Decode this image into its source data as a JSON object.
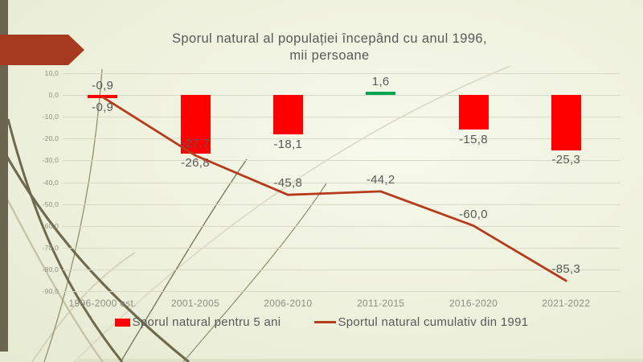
{
  "slide": {
    "title_line1": "Sporul natural al populației începând cu anul 1996,",
    "title_line2": "mii persoane"
  },
  "colors": {
    "bar_negative": "#ff0000",
    "bar_positive": "#00a651",
    "line": "#b43c1d",
    "accent_arrow": "#a63a1e",
    "left_band": "#6b6550",
    "grid": "#d9d8c4",
    "label_text": "#595959",
    "axis_text": "#8e8e83"
  },
  "chart_data": {
    "type": "combo",
    "title": "Sporul natural al populației începând cu anul 1996, mii persoane",
    "xlabel": "",
    "ylabel": "",
    "categories": [
      "1996-2000 est.",
      "2001-2005",
      "2006-2010",
      "2011-2015",
      "2016-2020",
      "2021-2022"
    ],
    "series": [
      {
        "name": "Sporul natural pentru 5 ani",
        "type": "bar",
        "values": [
          -0.9,
          -26.8,
          -18.1,
          1.6,
          -15.8,
          -25.3
        ],
        "labels": [
          "-0,9",
          "-26,8",
          "-18,1",
          "1,6",
          "-15,8",
          "-25,3"
        ],
        "colors": [
          "#ff0000",
          "#ff0000",
          "#ff0000",
          "#00a651",
          "#ff0000",
          "#ff0000"
        ]
      },
      {
        "name": "Sportul natural cumulativ din 1991",
        "type": "line",
        "values": [
          -0.9,
          -27.7,
          -45.8,
          -44.2,
          -60.0,
          -85.3
        ],
        "labels": [
          "-0,9",
          "-27,7",
          "-45,8",
          "-44,2",
          "-60,0",
          "-85,3"
        ]
      }
    ],
    "ylim": [
      -90,
      10
    ],
    "ytick_step": 10,
    "ytick_labels": [
      "10,0",
      "0,0",
      "-10,0",
      "-20,0",
      "-30,0",
      "-40,0",
      "-50,0",
      "-60,0",
      "-70,0",
      "-80,0",
      "-90,0"
    ],
    "grid": true,
    "legend_position": "bottom"
  }
}
